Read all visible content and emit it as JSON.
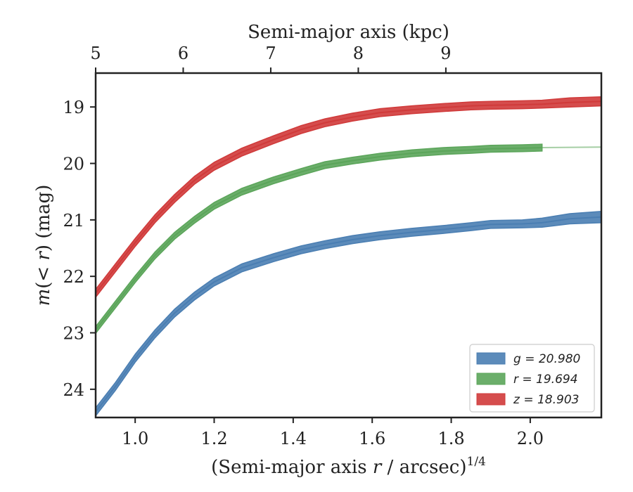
{
  "chart_data": {
    "type": "line",
    "title": "",
    "xlabel": "(Semi-major axis r / arcsec)^{1/4}",
    "xlabel_parts": [
      "(Semi-major axis ",
      "r",
      " / arcsec)",
      "1/4"
    ],
    "x2label": "Semi-major axis (kpc)",
    "ylabel": "m(< r) (mag)",
    "ylabel_parts": [
      "m",
      "(< ",
      "r",
      ") (mag)"
    ],
    "xlim": [
      0.9,
      2.18
    ],
    "ylim": [
      24.5,
      18.4
    ],
    "y_inverted": true,
    "xticks": [
      1.0,
      1.2,
      1.4,
      1.6,
      1.8,
      2.0
    ],
    "xtick_labels": [
      "1.0",
      "1.2",
      "1.4",
      "1.6",
      "1.8",
      "2.0"
    ],
    "yticks": [
      19,
      20,
      21,
      22,
      23,
      24
    ],
    "ytick_labels": [
      "19",
      "20",
      "21",
      "22",
      "23",
      "24"
    ],
    "x2ticks_kpc": [
      5,
      6,
      7,
      8,
      9
    ],
    "x2tick_labels": [
      "5",
      "6",
      "7",
      "8",
      "9"
    ],
    "x2_conversion_x_per_kpc": 0.2216,
    "x2_conversion_offset": -0.208,
    "grid": false,
    "legend_placement": "bottom-right",
    "series": [
      {
        "name": "g = 20.980",
        "legend_label": "g = 20.980",
        "color": "#4a7eb2",
        "x": [
          0.9,
          0.95,
          1.0,
          1.05,
          1.1,
          1.15,
          1.2,
          1.27,
          1.35,
          1.42,
          1.48,
          1.55,
          1.62,
          1.7,
          1.78,
          1.85,
          1.9,
          1.98,
          2.03,
          2.1,
          2.18
        ],
        "y": [
          24.4,
          23.95,
          23.45,
          23.02,
          22.65,
          22.35,
          22.1,
          21.85,
          21.67,
          21.53,
          21.44,
          21.35,
          21.28,
          21.22,
          21.17,
          21.12,
          21.08,
          21.07,
          21.05,
          20.98,
          20.95
        ],
        "band": [
          0.07,
          0.07,
          0.07,
          0.07,
          0.07,
          0.07,
          0.07,
          0.07,
          0.07,
          0.07,
          0.07,
          0.07,
          0.07,
          0.07,
          0.07,
          0.07,
          0.07,
          0.07,
          0.08,
          0.09,
          0.1
        ]
      },
      {
        "name": "r = 19.694",
        "legend_label": "r = 19.694",
        "color": "#5ba55a",
        "x": [
          0.9,
          0.95,
          1.0,
          1.05,
          1.1,
          1.15,
          1.2,
          1.27,
          1.35,
          1.42,
          1.48,
          1.55,
          1.62,
          1.7,
          1.78,
          1.85,
          1.9,
          1.98,
          2.03
        ],
        "y": [
          22.95,
          22.5,
          22.05,
          21.63,
          21.28,
          21.0,
          20.75,
          20.5,
          20.3,
          20.15,
          20.03,
          19.95,
          19.88,
          19.82,
          19.78,
          19.76,
          19.74,
          19.73,
          19.72
        ],
        "band": [
          0.06,
          0.06,
          0.06,
          0.06,
          0.06,
          0.06,
          0.06,
          0.06,
          0.06,
          0.06,
          0.06,
          0.06,
          0.06,
          0.06,
          0.06,
          0.06,
          0.06,
          0.06,
          0.06
        ],
        "extension": {
          "x": [
            2.03,
            2.18
          ],
          "y": [
            19.72,
            19.71
          ]
        }
      },
      {
        "name": "z = 18.903",
        "legend_label": "z = 18.903",
        "color": "#d03a3a",
        "x": [
          0.9,
          0.95,
          1.0,
          1.05,
          1.1,
          1.15,
          1.2,
          1.27,
          1.35,
          1.42,
          1.48,
          1.55,
          1.62,
          1.7,
          1.78,
          1.85,
          1.9,
          1.98,
          2.03,
          2.1,
          2.18
        ],
        "y": [
          22.3,
          21.85,
          21.4,
          20.98,
          20.62,
          20.3,
          20.05,
          19.8,
          19.58,
          19.4,
          19.28,
          19.18,
          19.1,
          19.05,
          19.01,
          18.98,
          18.97,
          18.96,
          18.95,
          18.92,
          18.9
        ],
        "band": [
          0.07,
          0.07,
          0.07,
          0.07,
          0.07,
          0.07,
          0.07,
          0.07,
          0.07,
          0.07,
          0.07,
          0.07,
          0.07,
          0.07,
          0.07,
          0.07,
          0.07,
          0.07,
          0.07,
          0.08,
          0.08
        ]
      }
    ]
  }
}
